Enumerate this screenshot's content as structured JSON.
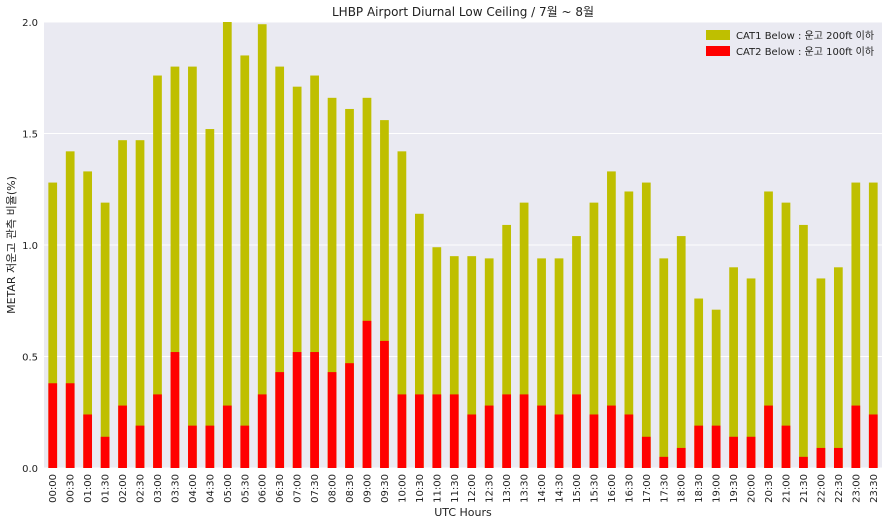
{
  "chart_data": {
    "type": "bar",
    "title": "LHBP Airport Diurnal Low Ceiling / 7월 ~ 8월",
    "xlabel": "UTC Hours",
    "ylabel": "METAR 저운고 관측 비율(%)",
    "ylim": [
      0,
      2.0
    ],
    "yticks": [
      "0.0",
      "0.5",
      "1.0",
      "1.5",
      "2.0"
    ],
    "grid": true,
    "legend_position": "top-right",
    "categories": [
      "00:00",
      "00:30",
      "01:00",
      "01:30",
      "02:00",
      "02:30",
      "03:00",
      "03:30",
      "04:00",
      "04:30",
      "05:00",
      "05:30",
      "06:00",
      "06:30",
      "07:00",
      "07:30",
      "08:00",
      "08:30",
      "09:00",
      "09:30",
      "10:00",
      "10:30",
      "11:00",
      "11:30",
      "12:00",
      "12:30",
      "13:00",
      "13:30",
      "14:00",
      "14:30",
      "15:00",
      "15:30",
      "16:00",
      "16:30",
      "17:00",
      "17:30",
      "18:00",
      "18:30",
      "19:00",
      "19:30",
      "20:00",
      "20:30",
      "21:00",
      "21:30",
      "22:00",
      "22:30",
      "23:00",
      "23:30"
    ],
    "series": [
      {
        "name": "CAT1 Below : 운고 200ft 이하",
        "color": "#bfbf00",
        "values": [
          1.28,
          1.42,
          1.33,
          1.19,
          1.47,
          1.47,
          1.76,
          1.8,
          1.8,
          1.52,
          2.0,
          1.85,
          1.99,
          1.8,
          1.71,
          1.76,
          1.66,
          1.61,
          1.66,
          1.56,
          1.42,
          1.14,
          0.99,
          0.95,
          0.95,
          0.94,
          1.09,
          1.19,
          0.94,
          0.94,
          1.04,
          1.19,
          1.33,
          1.24,
          1.28,
          0.94,
          1.04,
          0.76,
          0.71,
          0.9,
          0.85,
          1.24,
          1.19,
          1.09,
          0.85,
          0.9,
          1.28,
          1.28
        ]
      },
      {
        "name": "CAT2 Below : 운고 100ft 이하",
        "color": "#ff0000",
        "values": [
          0.38,
          0.38,
          0.24,
          0.14,
          0.28,
          0.19,
          0.33,
          0.52,
          0.19,
          0.19,
          0.28,
          0.19,
          0.33,
          0.43,
          0.52,
          0.52,
          0.43,
          0.47,
          0.66,
          0.57,
          0.33,
          0.33,
          0.33,
          0.33,
          0.24,
          0.28,
          0.33,
          0.33,
          0.28,
          0.24,
          0.33,
          0.24,
          0.28,
          0.24,
          0.14,
          0.05,
          0.09,
          0.19,
          0.19,
          0.14,
          0.14,
          0.28,
          0.19,
          0.05,
          0.09,
          0.09,
          0.28,
          0.24
        ]
      }
    ]
  }
}
